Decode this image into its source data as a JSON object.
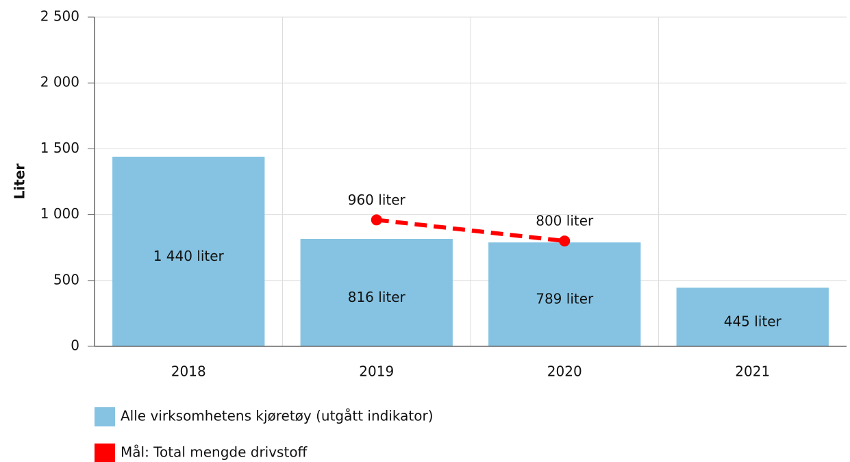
{
  "chart_data": {
    "type": "bar",
    "ylabel": "Liter",
    "categories": [
      "2018",
      "2019",
      "2020",
      "2021"
    ],
    "ylim": [
      0,
      2500
    ],
    "yticks": [
      0,
      500,
      {
        "value": 1000,
        "label": "1 000"
      },
      {
        "value": 1500,
        "label": "1 500"
      },
      {
        "value": 2000,
        "label": "2 000"
      },
      {
        "value": 2500,
        "label": "2 500"
      }
    ],
    "grid": true,
    "series": [
      {
        "name": "Alle virksomhetens kjøretøy (utgått indikator)",
        "type": "bar",
        "color": "#86c3e2",
        "values": [
          1440,
          816,
          789,
          445
        ],
        "value_labels": [
          "1 440 liter",
          "816 liter",
          "789 liter",
          "445 liter"
        ]
      },
      {
        "name": "Mål: Total mengde drivstoff",
        "type": "line",
        "color": "#ff0000",
        "values": [
          null,
          960,
          800,
          null
        ],
        "value_labels": [
          null,
          "960 liter",
          "800 liter",
          null
        ]
      }
    ]
  }
}
